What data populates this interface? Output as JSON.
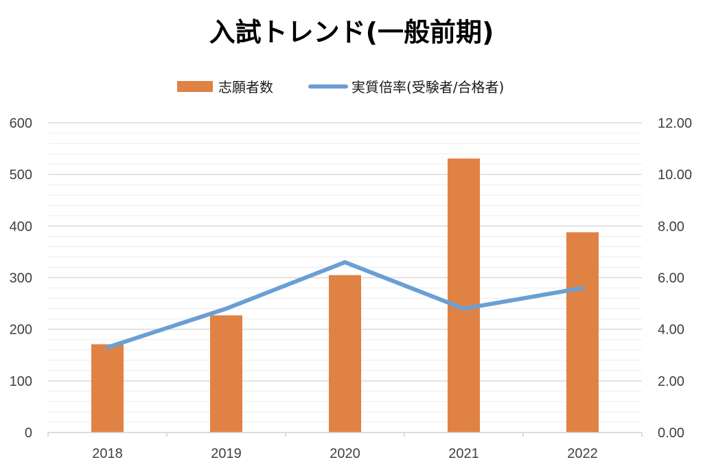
{
  "chart_data": {
    "type": "bar",
    "title": "入試トレンド(一般前期)",
    "categories": [
      "2018",
      "2019",
      "2020",
      "2021",
      "2022"
    ],
    "series": [
      {
        "name": "志願者数",
        "type": "bar",
        "axis": "left",
        "color": "#E08244",
        "values": [
          171,
          227,
          305,
          531,
          388
        ]
      },
      {
        "name": "実質倍率(受験者/合格者)",
        "type": "line",
        "axis": "right",
        "color": "#6A9FD4",
        "values": [
          3.3,
          4.8,
          6.6,
          4.8,
          5.6
        ]
      }
    ],
    "y_left": {
      "ylim": [
        0,
        600
      ],
      "ticks": [
        "0",
        "100",
        "200",
        "300",
        "400",
        "500",
        "600"
      ]
    },
    "y_right": {
      "ylim": [
        0,
        12
      ],
      "ticks": [
        "0.00",
        "2.00",
        "4.00",
        "6.00",
        "8.00",
        "10.00",
        "12.00"
      ]
    },
    "grid": true,
    "legend_position": "top-center"
  }
}
